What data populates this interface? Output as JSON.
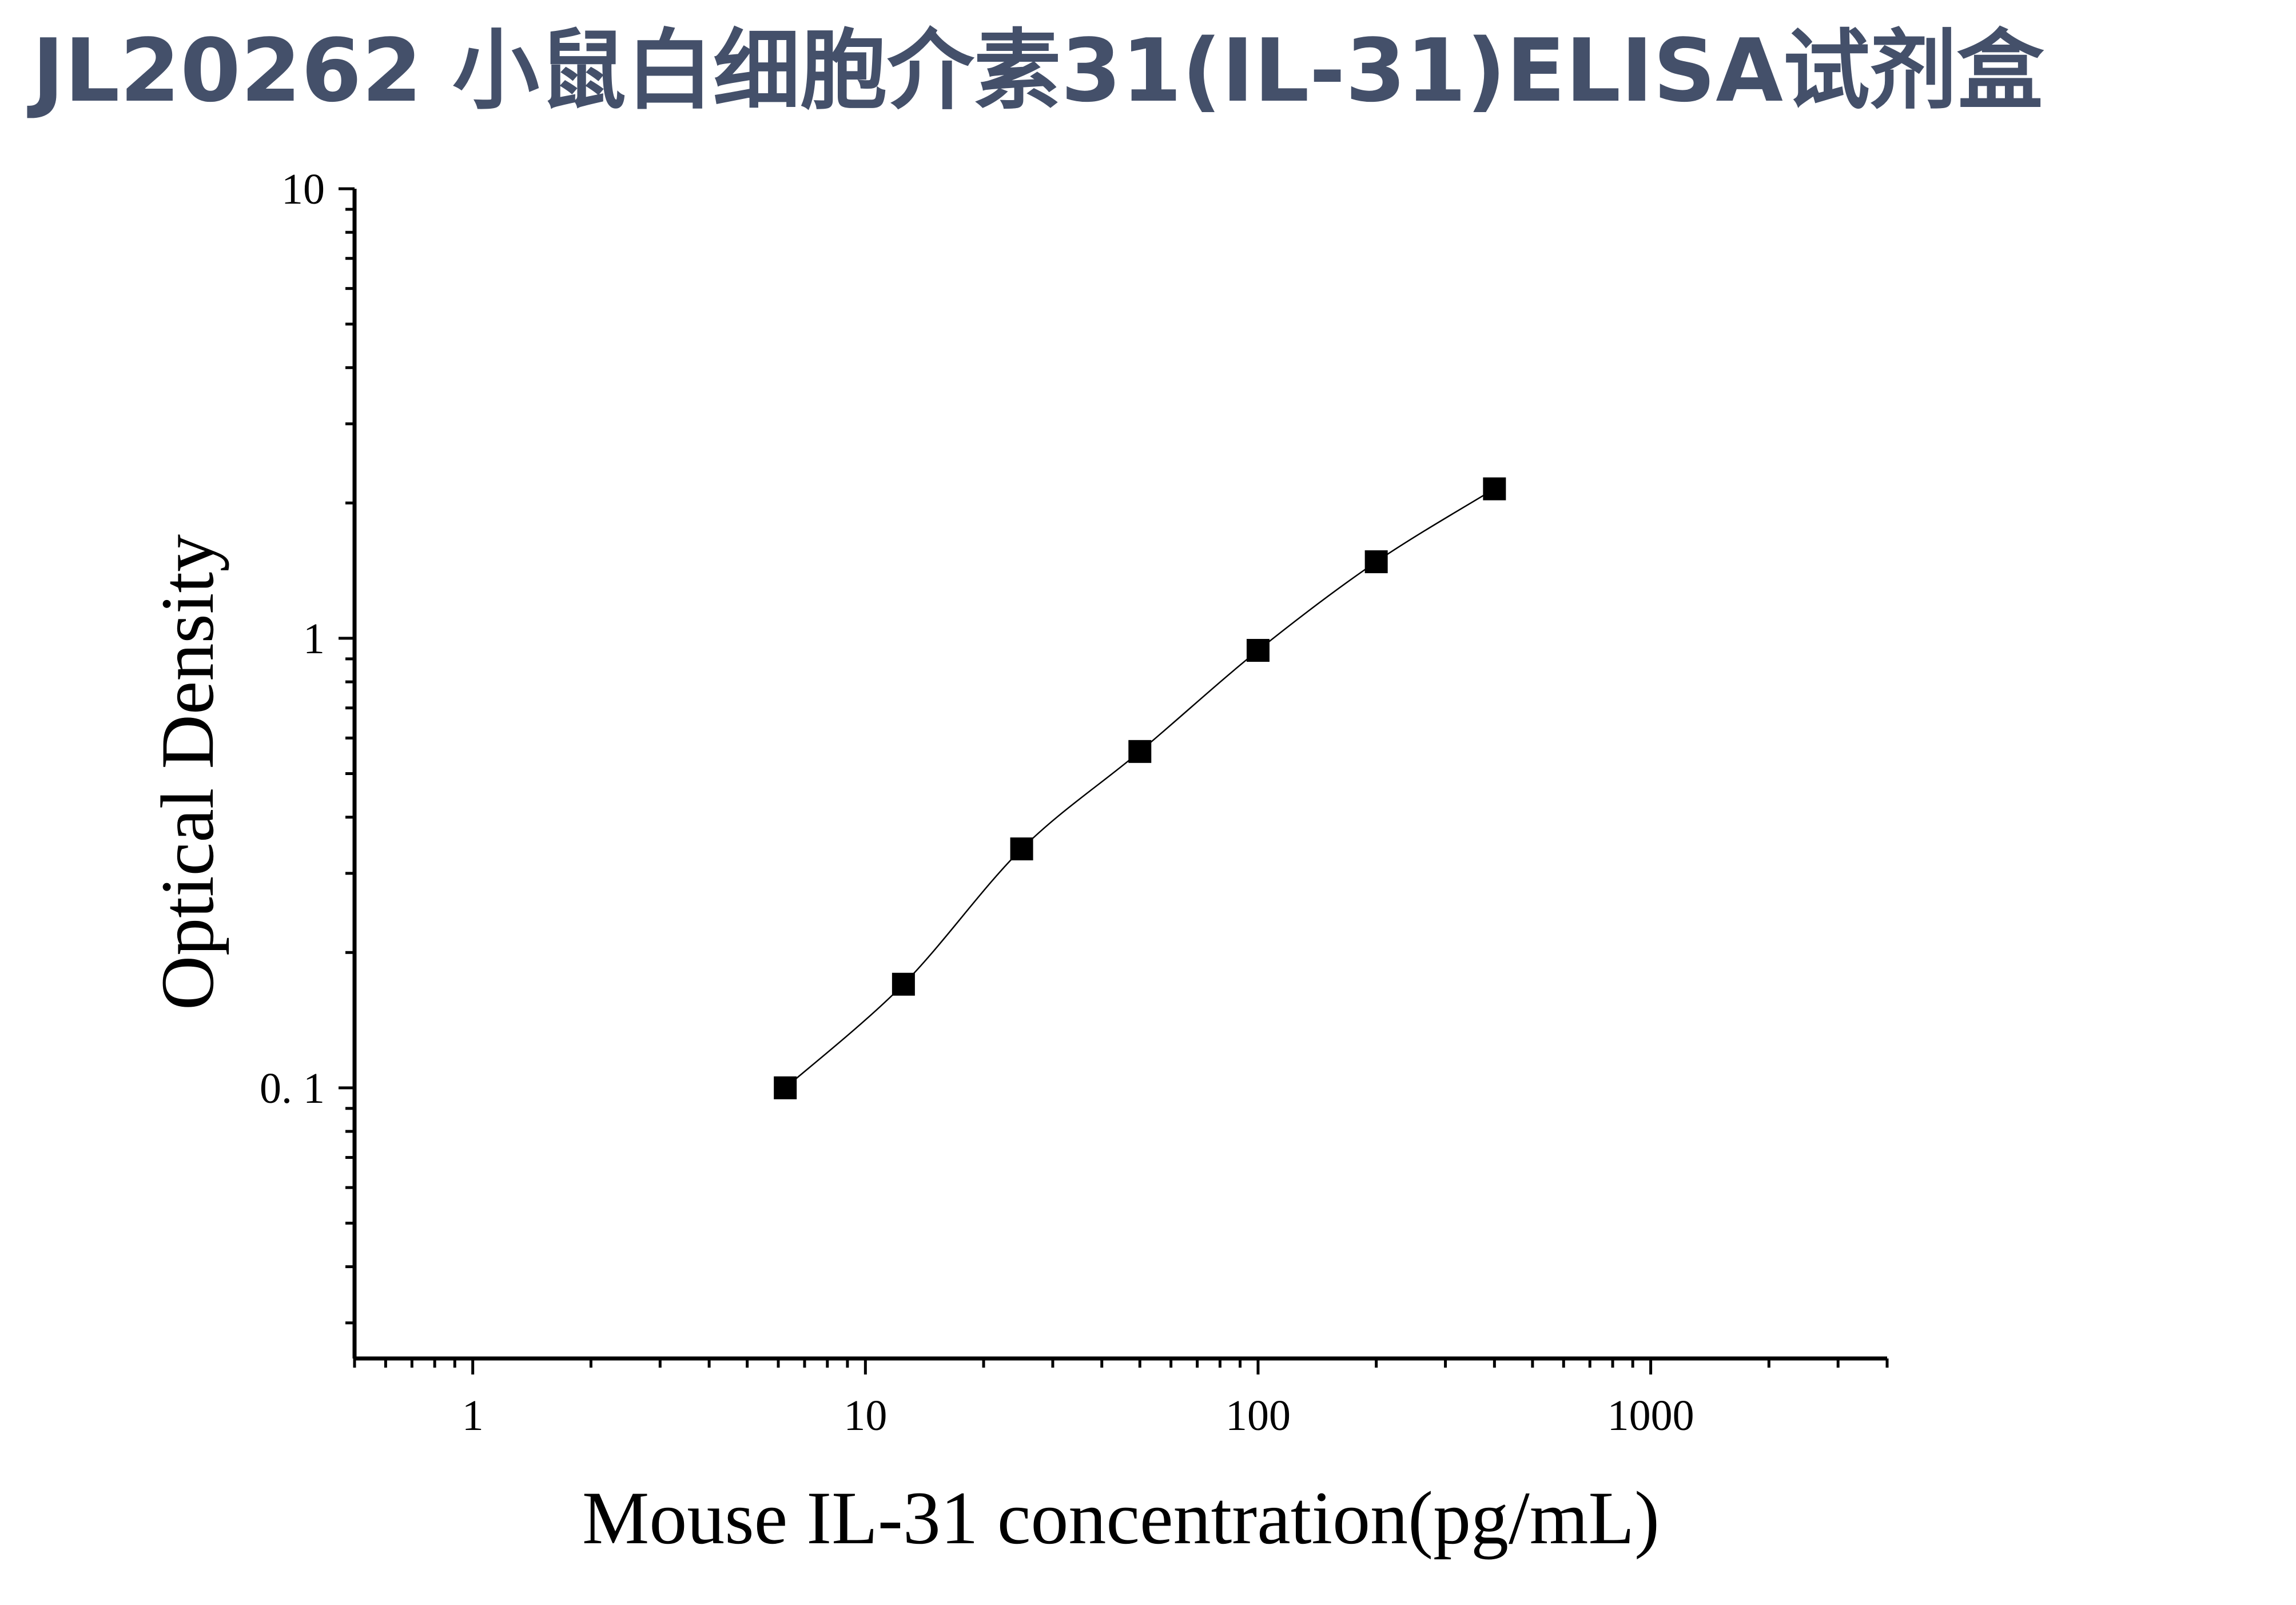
{
  "title": "JL20262 小鼠白细胞介素31(IL-31)ELISA试剂盒",
  "chart_data": {
    "type": "scatter",
    "title": "JL20262 小鼠白细胞介素31(IL-31)ELISA试剂盒",
    "xlabel": "Mouse IL-31 concentration(pg/mL)",
    "ylabel": "Optical Density",
    "xscale": "log",
    "yscale": "log",
    "xlim": [
      0.5,
      4000
    ],
    "ylim": [
      0.025,
      10
    ],
    "x_ticks": [
      1,
      10,
      100,
      1000
    ],
    "x_tick_labels": [
      "1",
      "10",
      "100",
      "1000"
    ],
    "y_ticks": [
      0.1,
      1,
      10
    ],
    "y_tick_labels": [
      "0. 1",
      "1",
      "10"
    ],
    "grid": false,
    "legend": "none",
    "marker": "square",
    "fit_line": true,
    "series": [
      {
        "x": [
          6.25,
          12.5,
          25,
          50,
          100,
          200,
          400
        ],
        "y": [
          0.1,
          0.17,
          0.34,
          0.56,
          0.94,
          1.48,
          2.15
        ]
      }
    ],
    "colors": {
      "title": "#44506a",
      "ink": "#000000"
    }
  }
}
